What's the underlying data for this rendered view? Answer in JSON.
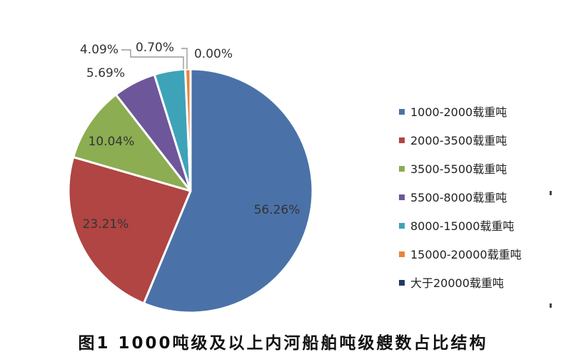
{
  "caption": "图1 1000吨级及以上内河船舶吨级艘数占比结构",
  "chart_data": {
    "type": "pie",
    "title": "",
    "start_angle_deg": 0,
    "direction": "clockwise",
    "legend_position": "right",
    "slices": [
      {
        "name": "1000-2000载重吨",
        "value": 56.26,
        "label": "56.26%",
        "color": "#4a72a8"
      },
      {
        "name": "2000-3500载重吨",
        "value": 23.21,
        "label": "23.21%",
        "color": "#b04543"
      },
      {
        "name": "3500-5500载重吨",
        "value": 10.04,
        "label": "10.04%",
        "color": "#8cad52"
      },
      {
        "name": "5500-8000载重吨",
        "value": 5.69,
        "label": "5.69%",
        "color": "#6e569a"
      },
      {
        "name": "8000-15000载重吨",
        "value": 4.09,
        "label": "4.09%",
        "color": "#3ea3b8"
      },
      {
        "name": "15000-20000载重吨",
        "value": 0.7,
        "label": "0.70%",
        "color": "#e8843a"
      },
      {
        "name": "大于20000载重吨",
        "value": 0.0,
        "label": "0.00%",
        "color": "#213a66"
      }
    ]
  }
}
